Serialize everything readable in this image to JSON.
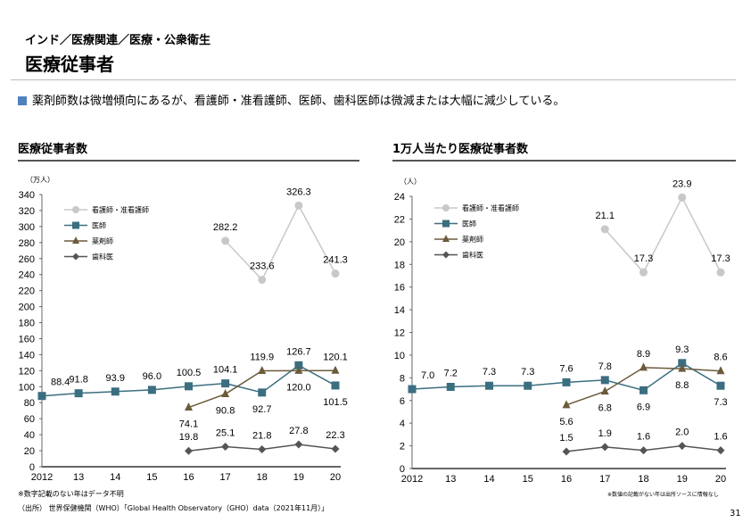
{
  "header": {
    "breadcrumb": "インド／医療関連／医療・公衆衛生",
    "title": "医療従事者"
  },
  "summary": "薬剤師数は微増傾向にあるが、看護師・准看護師、医師、歯科医師は微減または大幅に減少している。",
  "colors": {
    "nurse": "#c8c8c8",
    "doctor": "#3b6e80",
    "pharmacist": "#6b5b3b",
    "dentist": "#555555",
    "accent": "#4f81bd"
  },
  "chart_data": [
    {
      "type": "line",
      "title": "医療従事者数",
      "ylabel": "（万人）",
      "ylim": [
        0,
        340
      ],
      "yticks": [
        0,
        20,
        40,
        60,
        80,
        100,
        120,
        140,
        160,
        180,
        200,
        220,
        240,
        260,
        280,
        300,
        320,
        340
      ],
      "categories": [
        "2012",
        "13",
        "14",
        "15",
        "16",
        "17",
        "18",
        "19",
        "20"
      ],
      "legend": "top-left",
      "grid": false,
      "series": [
        {
          "name": "看護師・准看護師",
          "marker": "circle",
          "values": [
            null,
            null,
            null,
            null,
            null,
            282.2,
            233.6,
            326.3,
            241.3
          ]
        },
        {
          "name": "医師",
          "marker": "square",
          "values": [
            88.4,
            91.8,
            93.9,
            96.0,
            100.5,
            104.1,
            92.7,
            126.7,
            101.5
          ]
        },
        {
          "name": "薬剤師",
          "marker": "triangle",
          "values": [
            null,
            null,
            null,
            null,
            74.1,
            90.8,
            119.9,
            120.0,
            120.1
          ]
        },
        {
          "name": "歯科医",
          "marker": "diamond",
          "values": [
            null,
            null,
            null,
            null,
            19.8,
            25.1,
            21.8,
            27.8,
            22.3
          ]
        }
      ],
      "footnote": "※数字記載のない年はデータ不明",
      "source": "（出所） 世界保健機関（WHO）「Global Health Observatory（GHO）data（2021年11月）」"
    },
    {
      "type": "line",
      "title": "1万人当たり医療従事者数",
      "ylabel": "（人）",
      "ylim": [
        0,
        24
      ],
      "yticks": [
        0,
        2,
        4,
        6,
        8,
        10,
        12,
        14,
        16,
        18,
        20,
        22,
        24
      ],
      "categories": [
        "2012",
        "13",
        "14",
        "15",
        "16",
        "17",
        "18",
        "19",
        "20"
      ],
      "legend": "top-left",
      "grid": false,
      "series": [
        {
          "name": "看護師・准看護師",
          "marker": "circle",
          "values": [
            null,
            null,
            null,
            null,
            null,
            21.1,
            17.3,
            23.9,
            17.3
          ]
        },
        {
          "name": "医師",
          "marker": "square",
          "values": [
            7.0,
            7.2,
            7.3,
            7.3,
            7.6,
            7.8,
            6.9,
            9.3,
            7.3
          ]
        },
        {
          "name": "薬剤師",
          "marker": "triangle",
          "values": [
            null,
            null,
            null,
            null,
            5.6,
            6.8,
            8.9,
            8.8,
            8.6
          ]
        },
        {
          "name": "歯科医",
          "marker": "diamond",
          "values": [
            null,
            null,
            null,
            null,
            1.5,
            1.9,
            1.6,
            2.0,
            1.6
          ]
        }
      ],
      "footnote": "※数値の記載がない年は出所ソースに情報なし"
    }
  ],
  "page_number": "31"
}
